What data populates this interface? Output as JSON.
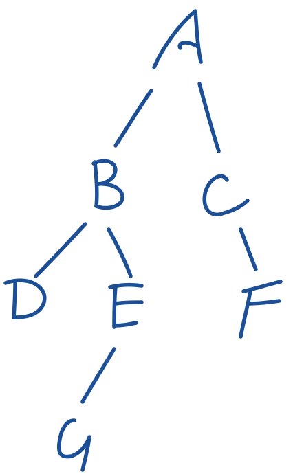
{
  "diagram": {
    "ink_color": "#1c4f96",
    "nodes": [
      {
        "id": "A",
        "label": "A"
      },
      {
        "id": "B",
        "label": "B"
      },
      {
        "id": "C",
        "label": "C"
      },
      {
        "id": "D",
        "label": "D"
      },
      {
        "id": "E",
        "label": "E"
      },
      {
        "id": "F",
        "label": "F"
      },
      {
        "id": "G",
        "label": "G"
      }
    ],
    "edges": [
      {
        "from": "A",
        "to": "B"
      },
      {
        "from": "A",
        "to": "C"
      },
      {
        "from": "B",
        "to": "D"
      },
      {
        "from": "B",
        "to": "E"
      },
      {
        "from": "C",
        "to": "F"
      },
      {
        "from": "E",
        "to": "G"
      }
    ]
  }
}
